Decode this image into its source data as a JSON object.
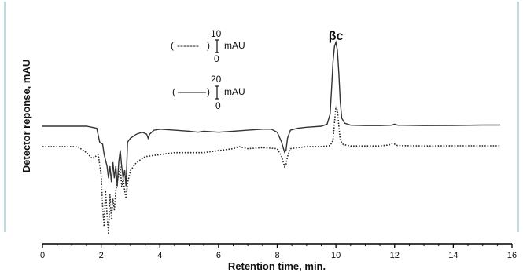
{
  "chart_data": {
    "type": "line",
    "xlabel": "Retention time, min.",
    "ylabel": "Detector reponse, mAU",
    "xlim": [
      0,
      16
    ],
    "xticks": [
      "0",
      "2",
      "4",
      "6",
      "8",
      "10",
      "12",
      "14",
      "16"
    ],
    "grid": false,
    "annotations": [
      {
        "text": "βc",
        "x": 10.0
      }
    ],
    "scale_bars": [
      {
        "line_style": "dashed",
        "prefix": "(",
        "line_text": "-------",
        "suffix": ")",
        "top": "10",
        "bottom": "0",
        "unit": "mAU"
      },
      {
        "line_style": "solid",
        "prefix": "(",
        "line_text": "———",
        "suffix": ")",
        "top": "20",
        "bottom": "0",
        "unit": "mAU"
      }
    ],
    "series": [
      {
        "style": "solid",
        "x": [
          0,
          1.5,
          1.85,
          1.95,
          2.05,
          2.1,
          2.15,
          2.2,
          2.25,
          2.3,
          2.35,
          2.4,
          2.45,
          2.5,
          2.55,
          2.6,
          2.65,
          2.7,
          2.75,
          2.8,
          2.85,
          2.9,
          3.0,
          3.2,
          3.4,
          3.55,
          3.6,
          3.65,
          3.8,
          4.0,
          4.5,
          5.0,
          5.3,
          5.5,
          6.0,
          6.5,
          7.0,
          7.5,
          7.8,
          8.0,
          8.15,
          8.25,
          8.3,
          8.35,
          8.45,
          8.7,
          9.0,
          9.5,
          9.7,
          9.8,
          9.85,
          9.9,
          9.95,
          10.0,
          10.05,
          10.1,
          10.15,
          10.2,
          10.3,
          10.5,
          11.0,
          11.5,
          11.9,
          12.0,
          12.1,
          13.0,
          14.0,
          15.0,
          15.6
        ],
        "y": [
          0,
          0,
          -1,
          -8,
          -9,
          -14,
          -17,
          -20,
          -26,
          -20,
          -28,
          -18,
          -26,
          -20,
          -30,
          -18,
          -12,
          -20,
          -26,
          -22,
          -30,
          -8,
          -6,
          -4,
          -3,
          -4,
          -6,
          -4,
          -2,
          -1.5,
          -2,
          -2.5,
          -3,
          -2.5,
          -3,
          -2.5,
          -2,
          -1.5,
          -1.5,
          -3,
          -8,
          -13,
          -12,
          -6,
          -2,
          -1,
          -0.5,
          0,
          1,
          6,
          18,
          32,
          40,
          42,
          38,
          26,
          12,
          4,
          1.5,
          0.5,
          0.3,
          0.3,
          0.5,
          1,
          0.5,
          0.3,
          0.4,
          0.6,
          0.6
        ]
      },
      {
        "style": "dotted",
        "x": [
          0,
          1.2,
          1.5,
          1.7,
          1.9,
          2.0,
          2.05,
          2.1,
          2.15,
          2.2,
          2.25,
          2.3,
          2.35,
          2.4,
          2.45,
          2.5,
          2.55,
          2.6,
          2.65,
          2.7,
          2.75,
          2.8,
          2.85,
          2.9,
          3.0,
          3.2,
          3.5,
          4.0,
          4.5,
          5.0,
          5.5,
          6.0,
          6.5,
          6.7,
          7.0,
          7.5,
          8.0,
          8.15,
          8.25,
          8.3,
          8.35,
          8.45,
          8.7,
          9.0,
          9.5,
          9.8,
          9.9,
          9.95,
          10.0,
          10.05,
          10.1,
          10.15,
          10.25,
          10.5,
          11.0,
          11.5,
          11.8,
          11.9,
          12.0,
          12.1,
          13.0,
          14.0,
          15.0,
          15.6
        ],
        "y": [
          0,
          0,
          -3,
          -6,
          -4,
          -14,
          -30,
          -40,
          -22,
          -34,
          -44,
          -24,
          -36,
          -26,
          -32,
          -22,
          -18,
          -14,
          -10,
          -20,
          -16,
          -22,
          -26,
          -18,
          -12,
          -8,
          -5,
          -4,
          -3,
          -3,
          -3,
          -2,
          -1,
          0,
          -1,
          -0.5,
          -1,
          -5,
          -10,
          -9,
          -5,
          -1,
          -0.5,
          0,
          0,
          0.5,
          3,
          12,
          20,
          18,
          10,
          3,
          1,
          0.3,
          0.3,
          0.3,
          0.8,
          1.5,
          1.2,
          0.5,
          0.3,
          0.4,
          0.4,
          0.4
        ]
      }
    ]
  }
}
